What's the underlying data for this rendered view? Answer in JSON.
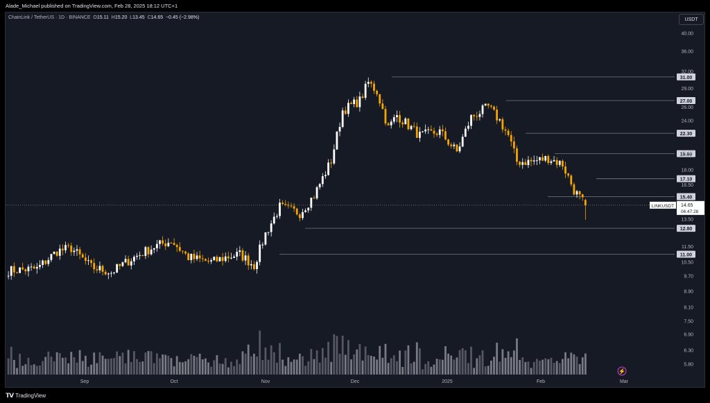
{
  "publisher": "Alade_Michael published on TradingView.com, Feb 28, 2025 18:12 UTC+1",
  "legend": {
    "symbol": "ChainLink / TetherUS · 1D · BINANCE",
    "o_label": "O",
    "o": "15.11",
    "h_label": "H",
    "h": "15.20",
    "l_label": "L",
    "l": "13.45",
    "c_label": "C",
    "c": "14.65",
    "change": "−0.45 (−2.98%)"
  },
  "currency_badge": "USDT",
  "footer_brand": "TradingView",
  "colors": {
    "up": "#ffffff",
    "down": "#f7a600",
    "level": "#787b86",
    "background": "#161a25",
    "price_line": "#9598a1"
  },
  "chart_data": {
    "type": "candlestick",
    "title": "ChainLink / TetherUS · 1D · BINANCE",
    "y_scale": "log",
    "y_ticks": [
      "40.00",
      "36.00",
      "32.00",
      "29.00",
      "26.00",
      "24.00",
      "20.00",
      "18.00",
      "16.50",
      "13.50",
      "11.50",
      "10.50",
      "9.70",
      "8.90",
      "8.10",
      "7.50",
      "6.90",
      "6.30",
      "5.80"
    ],
    "x_ticks": [
      "Sep",
      "Oct",
      "Nov",
      "Dec",
      "2025",
      "Feb",
      "Mar"
    ],
    "levels": [
      "31.00",
      "27.00",
      "22.30",
      "19.80",
      "17.10",
      "15.40",
      "12.80",
      "11.00"
    ],
    "current": {
      "label": "LINKUSDT",
      "price": "14.65",
      "countdown": "06:47:28"
    },
    "anchors": [
      [
        "Aug 10",
        10.0
      ],
      [
        "Aug 20",
        10.1
      ],
      [
        "Aug 27",
        11.2
      ],
      [
        "Sep 1",
        11.4
      ],
      [
        "Sep 8",
        10.2
      ],
      [
        "Sep 15",
        9.9
      ],
      [
        "Sep 22",
        10.7
      ],
      [
        "Sep 30",
        11.5
      ],
      [
        "Oct 6",
        11.9
      ],
      [
        "Oct 12",
        10.8
      ],
      [
        "Oct 20",
        10.5
      ],
      [
        "Oct 25",
        10.8
      ],
      [
        "Oct 30",
        11.0
      ],
      [
        "Nov 4",
        10.3
      ],
      [
        "Nov 8",
        12.4
      ],
      [
        "Nov 13",
        14.5
      ],
      [
        "Nov 20",
        14.0
      ],
      [
        "Nov 25",
        15.5
      ],
      [
        "Dec 1",
        19.0
      ],
      [
        "Dec 5",
        25.5
      ],
      [
        "Dec 11",
        27.0
      ],
      [
        "Dec 14",
        30.0
      ],
      [
        "Dec 17",
        28.5
      ],
      [
        "Dec 21",
        23.0
      ],
      [
        "Dec 24",
        24.8
      ],
      [
        "Jan 1",
        22.0
      ],
      [
        "Jan 8",
        22.5
      ],
      [
        "Jan 14",
        20.0
      ],
      [
        "Jan 19",
        24.5
      ],
      [
        "Jan 25",
        26.0
      ],
      [
        "Jan 29",
        24.0
      ],
      [
        "Feb 1",
        22.0
      ],
      [
        "Feb 4",
        18.9
      ],
      [
        "Feb 9",
        18.9
      ],
      [
        "Feb 15",
        19.3
      ],
      [
        "Feb 20",
        18.6
      ],
      [
        "Feb 24",
        16.0
      ],
      [
        "Feb 28",
        14.65
      ]
    ],
    "volume_labels": []
  }
}
